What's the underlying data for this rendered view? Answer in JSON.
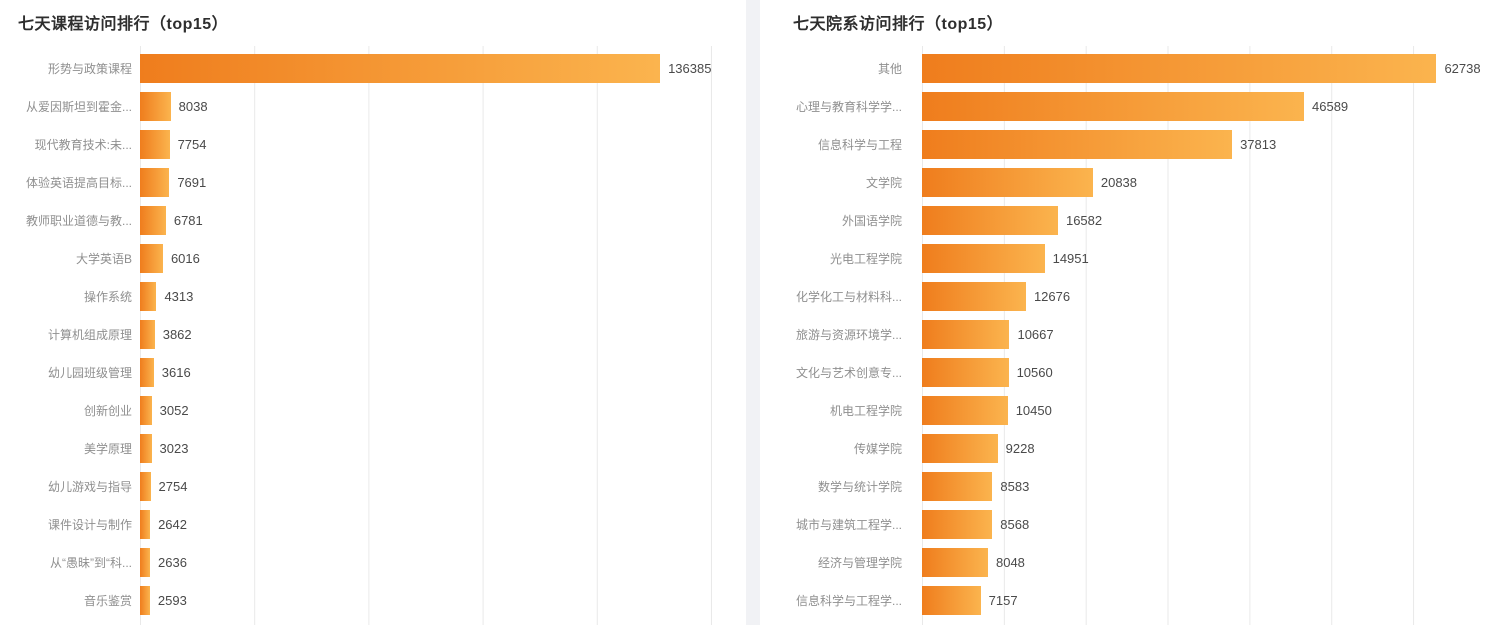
{
  "theme": {
    "card_bg": "#ffffff",
    "divider": "#f1f2f5",
    "title_color": "#2e2e2e",
    "category_color": "#8f8f8f",
    "value_color": "#4a4a4a",
    "grid_line": "#e9e9e9",
    "bar_gradient_start": "#EF7D1D",
    "bar_gradient_end": "#FBB44E"
  },
  "chart_data": [
    {
      "type": "bar",
      "orientation": "horizontal",
      "title": "七天课程访问排行（top15）",
      "xlabel": "",
      "ylabel": "",
      "legend": null,
      "grid": true,
      "xlim": [
        0,
        150000
      ],
      "grid_step": 30000,
      "value_labels": "right-of-bar",
      "categories": [
        "形势与政策课程",
        "从爱因斯坦到霍金...",
        "现代教育技术:未...",
        "体验英语提高目标...",
        "教师职业道德与教...",
        "大学英语B",
        "操作系统",
        "计算机组成原理",
        "幼儿园班级管理",
        "创新创业",
        "美学原理",
        "幼儿游戏与指导",
        "课件设计与制作",
        "从“愚昧”到“科...",
        "音乐鉴赏"
      ],
      "values": [
        136385,
        8038,
        7754,
        7691,
        6781,
        6016,
        4313,
        3862,
        3616,
        3052,
        3023,
        2754,
        2642,
        2636,
        2593
      ]
    },
    {
      "type": "bar",
      "orientation": "horizontal",
      "title": "七天院系访问排行（top15）",
      "xlabel": "",
      "ylabel": "",
      "legend": null,
      "grid": true,
      "xlim": [
        0,
        70000
      ],
      "grid_step": 10000,
      "value_labels": "right-of-bar",
      "categories": [
        "其他",
        "心理与教育科学学...",
        "信息科学与工程",
        "文学院",
        "外国语学院",
        "光电工程学院",
        "化学化工与材料科...",
        "旅游与资源环境学...",
        "文化与艺术创意专...",
        "机电工程学院",
        "传媒学院",
        "数学与统计学院",
        "城市与建筑工程学...",
        "经济与管理学院",
        "信息科学与工程学..."
      ],
      "values": [
        62738,
        46589,
        37813,
        20838,
        16582,
        14951,
        12676,
        10667,
        10560,
        10450,
        9228,
        8583,
        8568,
        8048,
        7157
      ]
    }
  ]
}
